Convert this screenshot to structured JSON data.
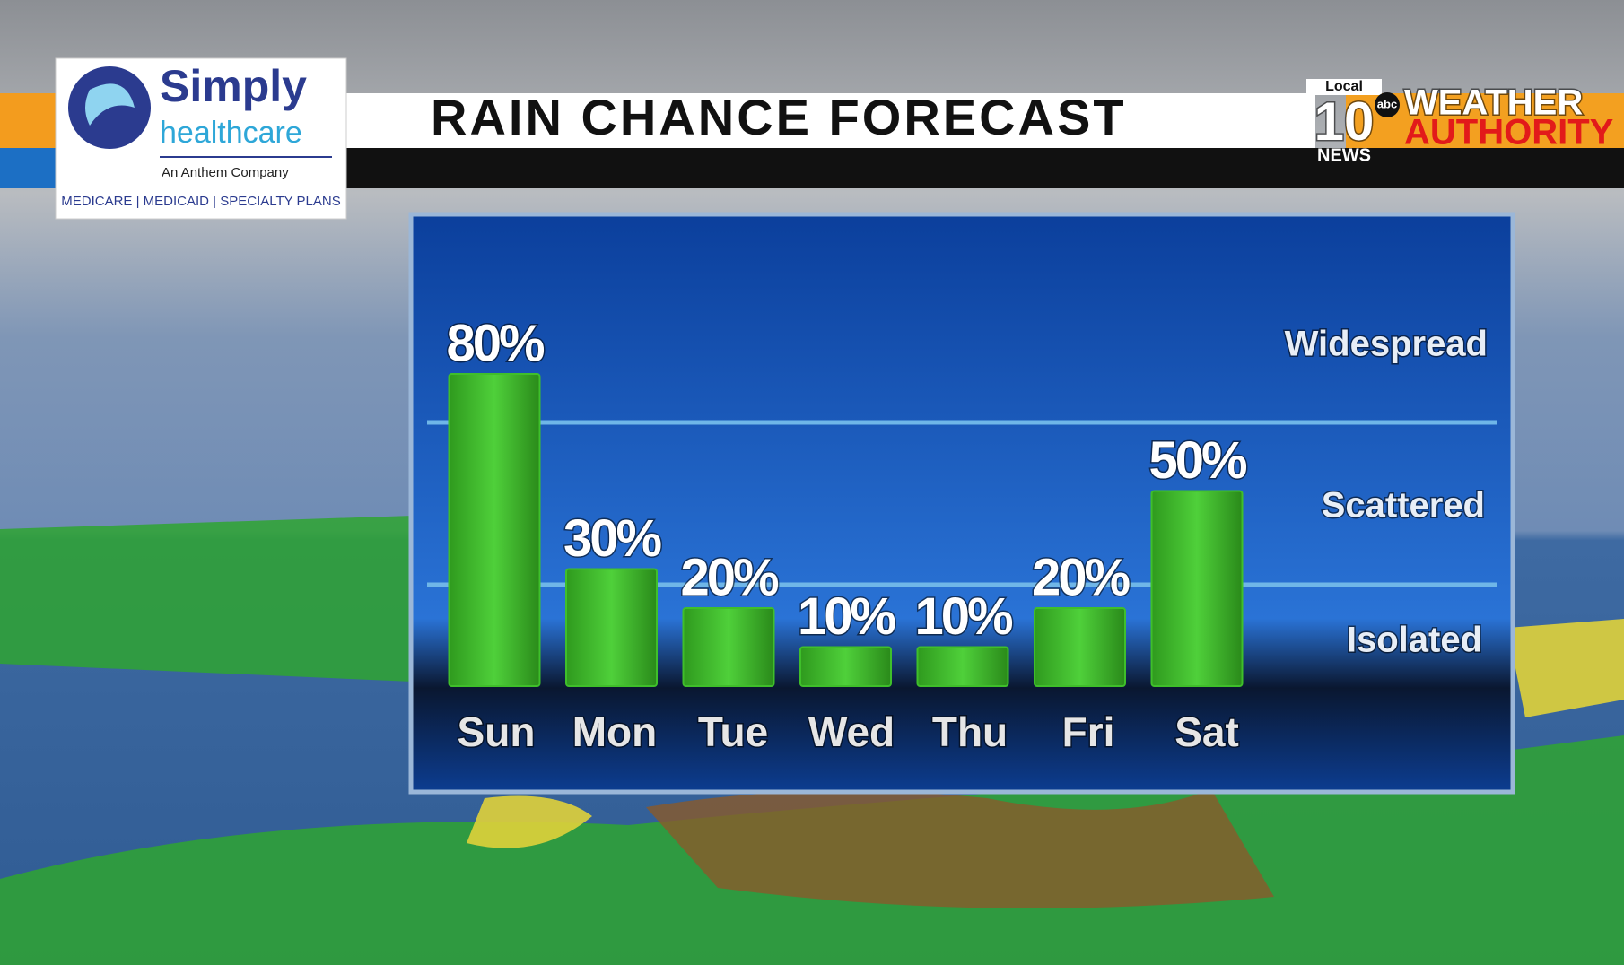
{
  "chart_data": {
    "type": "bar",
    "title": "RAIN CHANCE FORECAST",
    "categories": [
      "Sun",
      "Mon",
      "Tue",
      "Wed",
      "Thu",
      "Fri",
      "Sat"
    ],
    "values": [
      80,
      30,
      20,
      10,
      10,
      20,
      50
    ],
    "value_labels": [
      "80%",
      "30%",
      "20%",
      "10%",
      "10%",
      "20%",
      "50%"
    ],
    "color": "#3fbf2a",
    "ylim": [
      0,
      100
    ],
    "annotations": [
      "Widespread",
      "Scattered",
      "Isolated"
    ]
  },
  "sponsor": {
    "name": "Simply",
    "name2": "healthcare",
    "tagline": "An Anthem Company",
    "plans": "MEDICARE | MEDICAID | SPECIALTY PLANS"
  },
  "station": {
    "local": "Local",
    "number": "10",
    "news": "NEWS",
    "network": "abc",
    "brand1": "WEATHER",
    "brand2": "AUTHORITY"
  }
}
